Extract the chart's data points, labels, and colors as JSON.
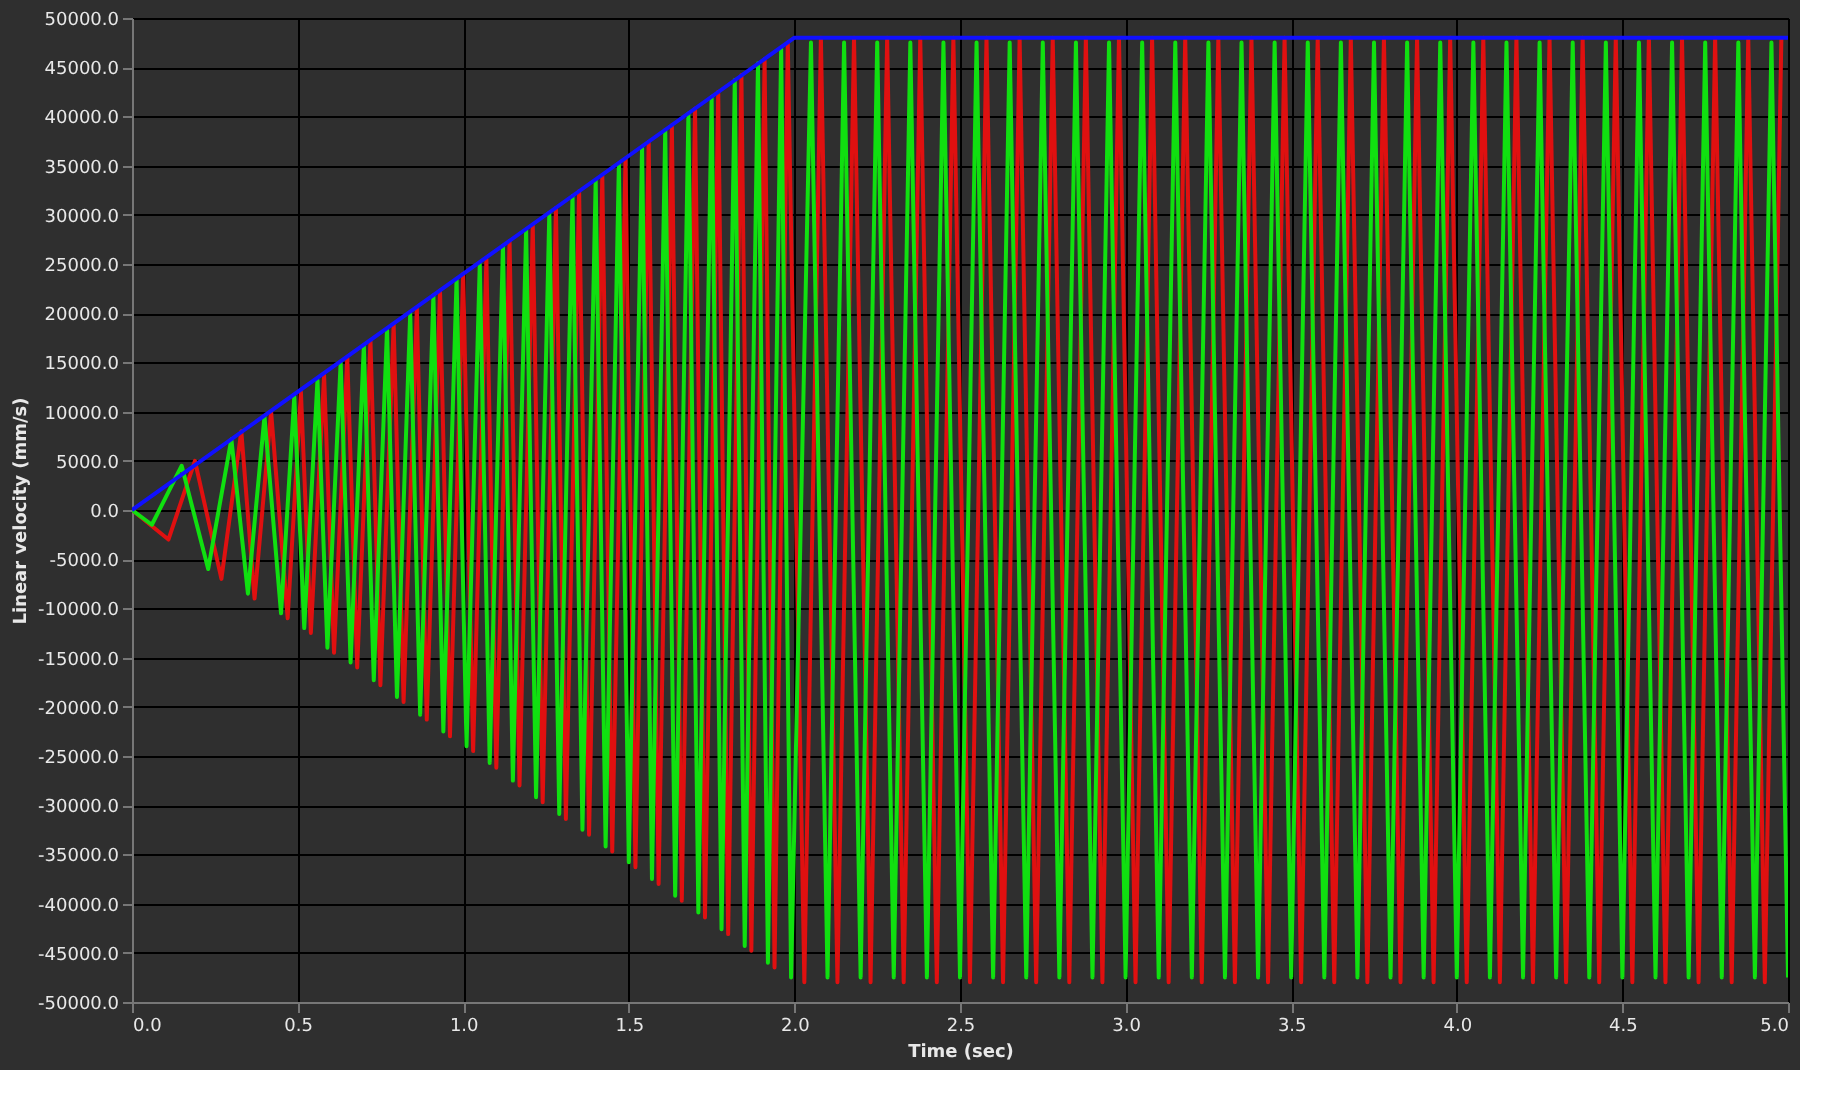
{
  "chart_data": {
    "type": "line",
    "xlabel": "Time (sec)",
    "ylabel": "Linear velocity (mm/s)",
    "xlim": [
      0,
      5
    ],
    "ylim": [
      -50000,
      50000
    ],
    "xticks": [
      {
        "value": 0,
        "label": "0.0"
      },
      {
        "value": 0.5,
        "label": "0.5"
      },
      {
        "value": 1,
        "label": "1.0"
      },
      {
        "value": 1.5,
        "label": "1.5"
      },
      {
        "value": 2,
        "label": "2.0"
      },
      {
        "value": 2.5,
        "label": "2.5"
      },
      {
        "value": 3,
        "label": "3.0"
      },
      {
        "value": 3.5,
        "label": "3.5"
      },
      {
        "value": 4,
        "label": "4.0"
      },
      {
        "value": 4.5,
        "label": "4.5"
      },
      {
        "value": 5,
        "label": "5.0"
      }
    ],
    "yticks": [
      {
        "value": -50000,
        "label": "-50000.0"
      },
      {
        "value": -45000,
        "label": "-45000.0"
      },
      {
        "value": -40000,
        "label": "-40000.0"
      },
      {
        "value": -35000,
        "label": "-35000.0"
      },
      {
        "value": -30000,
        "label": "-30000.0"
      },
      {
        "value": -25000,
        "label": "-25000.0"
      },
      {
        "value": -20000,
        "label": "-20000.0"
      },
      {
        "value": -15000,
        "label": "-15000.0"
      },
      {
        "value": -10000,
        "label": "-10000.0"
      },
      {
        "value": -5000,
        "label": "-5000.0"
      },
      {
        "value": 0,
        "label": "0.0"
      },
      {
        "value": 5000,
        "label": "5000.0"
      },
      {
        "value": 10000,
        "label": "10000.0"
      },
      {
        "value": 15000,
        "label": "15000.0"
      },
      {
        "value": 20000,
        "label": "20000.0"
      },
      {
        "value": 25000,
        "label": "25000.0"
      },
      {
        "value": 30000,
        "label": "30000.0"
      },
      {
        "value": 35000,
        "label": "35000.0"
      },
      {
        "value": 40000,
        "label": "40000.0"
      },
      {
        "value": 45000,
        "label": "45000.0"
      },
      {
        "value": 50000,
        "label": "50000.0"
      }
    ],
    "grid": true,
    "marker": "none",
    "line_style": "solid",
    "series": [
      {
        "color": "#e01010",
        "x": [
          0,
          0.11,
          0.19,
          0.27,
          0.33,
          0.37,
          0.42,
          0.47,
          0.51,
          0.54,
          0.58,
          0.61,
          0.65,
          0.68,
          0.72,
          0.75,
          0.79,
          0.82,
          0.86,
          0.89,
          0.93,
          0.96,
          1.0,
          1.03,
          1.07,
          1.1,
          1.14,
          1.17,
          1.21,
          1.24,
          1.28,
          1.31,
          1.35,
          1.38,
          1.42,
          1.45,
          1.49,
          1.52,
          1.56,
          1.59,
          1.63,
          1.66,
          1.7,
          1.73,
          1.77,
          1.8,
          1.84,
          1.87,
          1.91,
          1.94,
          1.98,
          2.03,
          2.08,
          2.13,
          2.18,
          2.23,
          2.28,
          2.33,
          2.38,
          2.43,
          2.48,
          2.53,
          2.58,
          2.63,
          2.68,
          2.73,
          2.78,
          2.83,
          2.88,
          2.93,
          2.98,
          3.03,
          3.08,
          3.13,
          3.18,
          3.23,
          3.28,
          3.33,
          3.38,
          3.43,
          3.48,
          3.53,
          3.58,
          3.63,
          3.68,
          3.73,
          3.78,
          3.83,
          3.88,
          3.93,
          3.98,
          4.03,
          4.08,
          4.13,
          4.18,
          4.23,
          4.28,
          4.33,
          4.38,
          4.43,
          4.48,
          4.53,
          4.58,
          4.63,
          4.68,
          4.73,
          4.78,
          4.83,
          4.88,
          4.93,
          4.98
        ],
        "values": [
          0,
          -3000,
          5000,
          -7000,
          8000,
          -9000,
          10000,
          -11000,
          12000,
          -12500,
          13700,
          -14500,
          15500,
          -16000,
          17200,
          -17800,
          18900,
          -19500,
          20500,
          -21300,
          22300,
          -23000,
          24000,
          -24500,
          25500,
          -26200,
          27300,
          -28000,
          29000,
          -29700,
          30700,
          -31400,
          32400,
          -33000,
          34000,
          -34700,
          35700,
          -36300,
          37400,
          -38000,
          39100,
          -39700,
          40800,
          -41400,
          42500,
          -43100,
          44200,
          -44800,
          45800,
          -46500,
          47500,
          -48000,
          48000,
          -48000,
          48000,
          -48000,
          48000,
          -48000,
          48000,
          -48000,
          48000,
          -48000,
          48000,
          -48000,
          48000,
          -48000,
          48000,
          -48000,
          48000,
          -48000,
          48000,
          -48000,
          48000,
          -48000,
          48000,
          -48000,
          48000,
          -48000,
          48000,
          -48000,
          48000,
          -48000,
          48000,
          -48000,
          48000,
          -48000,
          48000,
          -48000,
          48000,
          -48000,
          48000,
          -48000,
          48000,
          -48000,
          48000,
          -48000,
          48000,
          -48000,
          48000,
          -48000,
          48000,
          -48000,
          48000,
          -48000,
          48000,
          -48000,
          48000,
          -48000,
          48000,
          -48000,
          48000
        ]
      },
      {
        "color": "#10e010",
        "x": [
          0,
          0.06,
          0.15,
          0.23,
          0.3,
          0.35,
          0.4,
          0.45,
          0.49,
          0.52,
          0.56,
          0.59,
          0.63,
          0.66,
          0.7,
          0.73,
          0.77,
          0.8,
          0.84,
          0.87,
          0.91,
          0.94,
          0.98,
          1.01,
          1.05,
          1.08,
          1.12,
          1.15,
          1.19,
          1.22,
          1.26,
          1.29,
          1.33,
          1.36,
          1.4,
          1.43,
          1.47,
          1.5,
          1.54,
          1.57,
          1.61,
          1.64,
          1.68,
          1.71,
          1.75,
          1.78,
          1.82,
          1.85,
          1.89,
          1.92,
          1.96,
          1.99,
          2.05,
          2.1,
          2.15,
          2.2,
          2.25,
          2.3,
          2.35,
          2.4,
          2.45,
          2.5,
          2.55,
          2.6,
          2.65,
          2.7,
          2.75,
          2.8,
          2.85,
          2.9,
          2.95,
          3.0,
          3.05,
          3.1,
          3.15,
          3.2,
          3.25,
          3.3,
          3.35,
          3.4,
          3.45,
          3.5,
          3.55,
          3.6,
          3.65,
          3.7,
          3.75,
          3.8,
          3.85,
          3.9,
          3.95,
          4.0,
          4.05,
          4.1,
          4.15,
          4.2,
          4.25,
          4.3,
          4.35,
          4.4,
          4.45,
          4.5,
          4.55,
          4.6,
          4.65,
          4.7,
          4.75,
          4.8,
          4.85,
          4.9,
          4.95,
          5.0
        ],
        "values": [
          0,
          -1500,
          4500,
          -6000,
          7200,
          -8500,
          9500,
          -10500,
          11500,
          -12000,
          13200,
          -14000,
          15000,
          -15500,
          16700,
          -17300,
          18400,
          -19000,
          20000,
          -20800,
          21800,
          -22500,
          23500,
          -24000,
          25000,
          -25700,
          26800,
          -27500,
          28500,
          -29200,
          30200,
          -30900,
          31900,
          -32500,
          33500,
          -34200,
          35200,
          -35800,
          36900,
          -37500,
          38600,
          -39200,
          40300,
          -40900,
          42000,
          -42600,
          43700,
          -44300,
          45400,
          -46000,
          47000,
          -47500,
          47500,
          -47500,
          47500,
          -47500,
          47500,
          -47500,
          47500,
          -47500,
          47500,
          -47500,
          47500,
          -47500,
          47500,
          -47500,
          47500,
          -47500,
          47500,
          -47500,
          47500,
          -47500,
          47500,
          -47500,
          47500,
          -47500,
          47500,
          -47500,
          47500,
          -47500,
          47500,
          -47500,
          47500,
          -47500,
          47500,
          -47500,
          47500,
          -47500,
          47500,
          -47500,
          47500,
          -47500,
          47500,
          -47500,
          47500,
          -47500,
          47500,
          -47500,
          47500,
          -47500,
          47500,
          -47500,
          47500,
          -47500,
          47500,
          -47500,
          47500,
          -47500,
          47500,
          -47500,
          47500,
          -47500
        ]
      },
      {
        "color": "#1010ff",
        "x": [
          0,
          2,
          5
        ],
        "values": [
          0,
          48000,
          48000
        ]
      }
    ]
  }
}
